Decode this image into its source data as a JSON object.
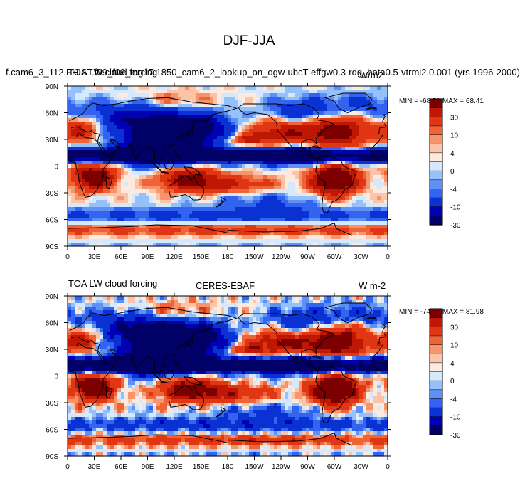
{
  "figure": {
    "title": "DJF-JJA"
  },
  "colors": {
    "levels": [
      -30,
      -20,
      -10,
      -6,
      -4,
      -2,
      0,
      2,
      4,
      6,
      10,
      20,
      30
    ],
    "fills": [
      "#000066",
      "#0000b4",
      "#0a32d2",
      "#3264f0",
      "#5f91f5",
      "#96c0fa",
      "#d6e8fc",
      "#fdeade",
      "#fbc4a8",
      "#f7946c",
      "#ef6437",
      "#e03614",
      "#be1805",
      "#7d0000"
    ],
    "land_outline": "#000000"
  },
  "chart_data": [
    {
      "type": "heatmap",
      "left_title": "f.cam6_3_112.FHIST.f09_f09_mg17.1850_cam6_2_lookup_on_ogw-ubcT-effgw0.3-rdg_beta0.5-vtrmi2.0.001 (yrs 1996-2000)",
      "overlay_title": "TOA LW cloud forcing",
      "units": "W/m2",
      "stats": "MIN = -68.51 MAX =  68.41",
      "min": -68.51,
      "max": 68.41,
      "colorbar_ticks": [
        "30",
        "10",
        "4",
        "0",
        "-4",
        "-10",
        "-30"
      ],
      "x_ticks": [
        "0",
        "30E",
        "60E",
        "90E",
        "120E",
        "150E",
        "180",
        "150W",
        "120W",
        "90W",
        "60W",
        "30W",
        "0"
      ],
      "y_ticks": [
        "90N",
        "60N",
        "30N",
        "0",
        "30S",
        "60S",
        "90S"
      ],
      "xlim": [
        0,
        360
      ],
      "ylim": [
        -90,
        90
      ]
    },
    {
      "type": "heatmap",
      "left_title": "TOA LW cloud forcing",
      "center_title": "CERES-EBAF",
      "units": "W m-2",
      "stats": "MIN = -74.19 MAX =  81.98",
      "min": -74.19,
      "max": 81.98,
      "colorbar_ticks": [
        "30",
        "10",
        "4",
        "0",
        "-4",
        "-10",
        "-30"
      ],
      "x_ticks": [
        "0",
        "30E",
        "60E",
        "90E",
        "120E",
        "150E",
        "180",
        "150W",
        "120W",
        "90W",
        "60W",
        "30W",
        "0"
      ],
      "y_ticks": [
        "90N",
        "60N",
        "30N",
        "0",
        "30S",
        "60S",
        "90S"
      ],
      "xlim": [
        0,
        360
      ],
      "ylim": [
        -90,
        90
      ]
    }
  ]
}
